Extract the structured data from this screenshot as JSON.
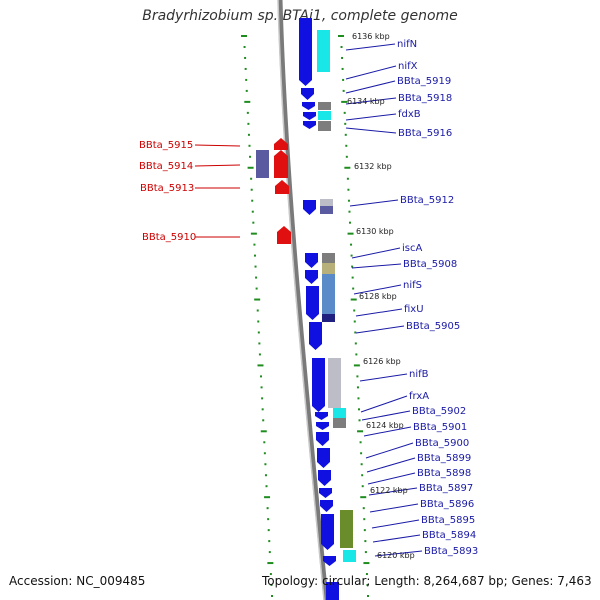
{
  "title": "Bradyrhizobium sp. BTAi1, complete genome",
  "footer": {
    "accession": "Accession: NC_009485",
    "topology": "Topology: circular; Length: 8,264,687 bp; Genes: 7,463"
  },
  "kbp_labels": [
    "6136 kbp",
    "6134 kbp",
    "6132 kbp",
    "6130 kbp",
    "6128 kbp",
    "6126 kbp",
    "6124 kbp",
    "6122 kbp",
    "6120 kbp"
  ],
  "right_genes": [
    "nifN",
    "nifX",
    "BBta_5919",
    "BBta_5918",
    "fdxB",
    "BBta_5916",
    "BBta_5912",
    "iscA",
    "BBta_5908",
    "nifS",
    "fixU",
    "BBta_5905",
    "nifB",
    "frxA",
    "BBta_5902",
    "BBta_5901",
    "BBta_5900",
    "BBta_5899",
    "BBta_5898",
    "BBta_5897",
    "BBta_5896",
    "BBta_5895",
    "BBta_5894",
    "BBta_5893"
  ],
  "left_genes": [
    "BBta_5915",
    "BBta_5914",
    "BBta_5913",
    "BBta_5910"
  ],
  "colors": {
    "forward_strand": "#1010e0",
    "reverse_strand": "#e01010",
    "backbone": "#8c8c8c",
    "tick": "#1e8c1e",
    "cyan": "#19e6e6",
    "gray": "#7d7d7d",
    "light_gray": "#bdbdc8",
    "tan": "#b8b07a",
    "steel_blue": "#5a8ac8",
    "navy": "#202080",
    "olive": "#6b8c2a",
    "slate_purple": "#5a5aa0"
  }
}
